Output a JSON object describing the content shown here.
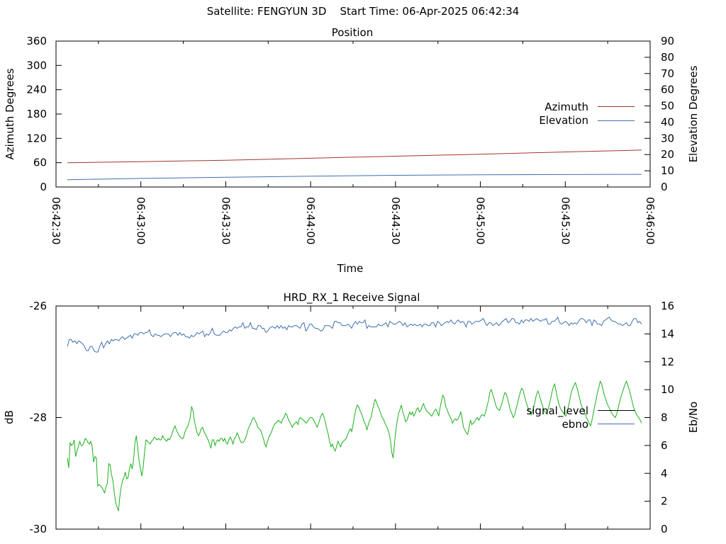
{
  "header": {
    "satellite": "Satellite: FENGYUN 3D",
    "start_time": "Start Time: 06-Apr-2025 06:42:34"
  },
  "chart_data": [
    {
      "type": "line",
      "title": "Position",
      "xlabel": "Time",
      "ylabel_left": "Azimuth Degrees",
      "ylabel_right": "Elevation Degrees",
      "x_ticks": [
        "06:42:30",
        "06:43:00",
        "06:43:30",
        "06:44:00",
        "06:44:30",
        "06:45:00",
        "06:45:30",
        "06:46:00"
      ],
      "xlim": [
        "06:42:30",
        "06:46:00"
      ],
      "ylim_left": [
        0,
        360
      ],
      "ylim_right": [
        0,
        90
      ],
      "y_ticks_left": [
        "0",
        "60",
        "120",
        "180",
        "240",
        "300",
        "360"
      ],
      "y_ticks_right": [
        "0",
        "10",
        "20",
        "30",
        "40",
        "50",
        "60",
        "70",
        "80",
        "90"
      ],
      "legend_position": "right",
      "series": [
        {
          "name": "Azimuth",
          "axis": "left",
          "color": "#a0362e",
          "x": [
            "06:42:34",
            "06:43:00",
            "06:43:30",
            "06:44:00",
            "06:44:30",
            "06:45:00",
            "06:45:30",
            "06:45:57"
          ],
          "values": [
            60,
            62.5,
            66,
            71,
            76,
            81,
            86.5,
            91
          ]
        },
        {
          "name": "Elevation",
          "axis": "right",
          "color": "#3f6fae",
          "x": [
            "06:42:34",
            "06:43:00",
            "06:43:30",
            "06:44:00",
            "06:44:30",
            "06:45:00",
            "06:45:30",
            "06:45:57"
          ],
          "values": [
            4.5,
            5.3,
            6.0,
            6.7,
            7.2,
            7.5,
            7.7,
            7.8
          ]
        }
      ]
    },
    {
      "type": "line",
      "title": "HRD_RX_1 Receive Signal",
      "ylabel_left": "dB",
      "ylabel_right": "Eb/No",
      "xlim": [
        "06:42:30",
        "06:46:00"
      ],
      "ylim_left": [
        -30,
        -26
      ],
      "ylim_right": [
        0,
        16
      ],
      "y_ticks_left": [
        "-30",
        "-28",
        "-26"
      ],
      "y_ticks_right": [
        "0",
        "2",
        "4",
        "6",
        "8",
        "10",
        "12",
        "14",
        "16"
      ],
      "legend_position": "right",
      "series": [
        {
          "name": "signal_level",
          "axis": "left",
          "color": "#000000",
          "values": []
        },
        {
          "name": "ebno",
          "axis": "right",
          "color": "#3f6fae",
          "start": "06:42:34",
          "step_seconds": 1,
          "values": [
            13.1,
            13.6,
            13.6,
            13.4,
            13.5,
            13.3,
            13.5,
            13.4,
            13.3,
            13.1,
            12.8,
            12.8,
            13.1,
            13.1,
            12.8,
            12.7,
            12.7,
            13.1,
            13.4,
            13.0,
            13.3,
            13.5,
            13.3,
            13.6,
            13.5,
            13.6,
            13.6,
            13.5,
            13.7,
            13.8,
            13.6,
            13.7,
            13.8,
            13.9,
            13.7,
            14.0,
            14.0,
            13.9,
            14.1,
            14.1,
            14.0,
            14.1,
            14.1,
            14.3,
            13.9,
            13.8,
            14.0,
            13.9,
            13.9,
            13.8,
            13.9,
            14.0,
            14.0,
            14.0,
            13.8,
            14.0,
            14.1,
            14.1,
            13.9,
            14.1,
            13.9,
            14.0,
            13.8,
            13.8,
            13.7,
            13.9,
            13.8,
            13.9,
            14.1,
            14.0,
            14.1,
            14.2,
            13.8,
            14.0,
            13.9,
            14.1,
            14.4,
            14.0,
            13.9,
            13.9,
            13.9,
            14.1,
            14.2,
            14.1,
            14.1,
            14.3,
            14.2,
            14.4,
            14.5,
            14.4,
            14.5,
            14.5,
            14.8,
            14.4,
            14.5,
            14.5,
            14.8,
            14.4,
            14.4,
            14.3,
            14.6,
            14.6,
            14.4,
            14.4,
            14.1,
            14.2,
            14.4,
            14.5,
            14.5,
            14.4,
            14.6,
            14.4,
            14.6,
            14.4,
            14.5,
            14.3,
            14.6,
            14.5,
            14.5,
            14.6,
            14.6,
            14.5,
            14.4,
            14.7,
            14.8,
            14.2,
            14.4,
            14.7,
            14.7,
            14.5,
            14.4,
            14.4,
            14.3,
            14.2,
            14.3,
            14.6,
            14.6,
            14.6,
            14.5,
            14.4,
            14.9,
            14.9,
            14.8,
            14.8,
            14.6,
            14.6,
            14.6,
            14.7,
            14.6,
            14.4,
            14.7,
            14.9,
            14.7,
            14.9,
            14.8,
            14.8,
            15.0,
            14.4,
            14.6,
            14.5,
            14.5,
            14.5,
            14.5,
            14.7,
            14.6,
            14.6,
            14.7,
            14.8,
            14.5,
            14.9,
            14.8,
            14.7,
            14.7,
            14.8,
            14.9,
            14.8,
            14.6,
            14.8,
            14.5,
            14.6,
            14.7,
            14.6,
            14.7,
            14.6,
            14.6,
            14.7,
            14.5,
            14.7,
            14.7,
            14.6,
            14.6,
            14.8,
            14.8,
            14.5,
            14.9,
            14.8,
            14.6,
            14.7,
            14.8,
            14.9,
            14.8,
            15.0,
            14.8,
            14.7,
            14.9,
            15.0,
            14.8,
            14.9,
            14.8,
            14.5,
            14.9,
            14.9,
            14.7,
            14.8,
            14.9,
            14.9,
            14.9,
            15.0,
            15.1,
            14.8,
            14.6,
            14.8,
            14.8,
            14.6,
            14.7,
            14.8,
            14.6,
            14.7,
            14.9,
            15.0,
            15.1,
            14.8,
            14.9,
            15.1,
            15.1,
            14.8,
            14.8,
            14.7,
            15.0,
            14.8,
            15.0,
            15.0,
            14.9,
            15.1,
            14.9,
            15.0,
            15.1,
            15.0,
            14.9,
            15.0,
            15.0,
            15.1,
            14.7,
            14.7,
            14.9,
            14.9,
            15.0,
            15.2,
            14.8,
            14.7,
            14.8,
            14.9,
            14.8,
            14.6,
            14.8,
            14.7,
            14.8,
            14.7,
            14.9,
            15.1,
            15.1,
            15.0,
            14.8,
            15.0,
            15.0,
            14.6,
            15.0,
            14.9,
            14.7,
            14.7,
            14.6,
            14.9,
            15.0,
            15.1,
            15.2,
            15.0,
            14.9,
            14.9,
            14.8,
            14.7,
            14.7,
            14.6,
            14.7,
            14.8,
            14.6,
            14.6,
            14.9,
            15.1,
            15.1,
            14.8,
            14.9,
            14.7
          ]
        },
        {
          "name": "",
          "axis": "right",
          "color": "#1cb01c",
          "start": "06:42:34",
          "step_seconds": 1,
          "values": [
            5.1,
            4.4,
            6.2,
            6.0,
            6.1,
            6.4,
            5.2,
            5.6,
            5.9,
            6.3,
            6.0,
            6.0,
            6.2,
            6.5,
            6.4,
            6.2,
            6.1,
            6.3,
            5.9,
            4.8,
            5.2,
            5.1,
            3.1,
            3.2,
            3.1,
            3.0,
            2.8,
            2.6,
            3.0,
            3.3,
            4.7,
            4.6,
            3.9,
            3.5,
            2.6,
            1.9,
            1.6,
            1.3,
            2.3,
            3.0,
            3.5,
            3.7,
            4.1,
            3.6,
            3.7,
            4.3,
            4.7,
            4.3,
            5.0,
            6.2,
            6.7,
            5.8,
            4.9,
            4.3,
            3.8,
            4.5,
            5.6,
            6.4,
            6.3,
            6.2,
            6.1,
            6.3,
            6.4,
            6.6,
            6.5,
            6.4,
            6.5,
            6.4,
            6.4,
            6.7,
            6.5,
            6.4,
            6.3,
            6.5,
            6.4,
            6.6,
            6.9,
            7.2,
            7.4,
            7.1,
            6.9,
            6.7,
            6.6,
            6.5,
            6.5,
            6.9,
            7.2,
            7.3,
            7.6,
            8.0,
            8.8,
            8.5,
            7.8,
            7.3,
            6.9,
            6.7,
            6.9,
            7.2,
            7.3,
            7.0,
            6.8,
            6.6,
            6.4,
            6.1,
            5.8,
            6.4,
            6.4,
            6.0,
            6.3,
            6.4,
            6.3,
            6.5,
            6.5,
            6.3,
            6.5,
            6.2,
            6.1,
            6.4,
            6.6,
            6.4,
            6.1,
            6.5,
            6.6,
            6.9,
            6.7,
            6.4,
            6.2,
            6.2,
            6.3,
            6.5,
            6.8,
            7.2,
            7.4,
            7.6,
            7.9,
            8.0,
            7.8,
            7.6,
            7.3,
            7.2,
            7.1,
            6.8,
            6.5,
            6.1,
            5.9,
            6.3,
            6.6,
            6.8,
            7.0,
            7.3,
            7.5,
            7.6,
            7.7,
            7.8,
            7.7,
            7.6,
            7.9,
            8.0,
            8.3,
            8.2,
            7.9,
            7.7,
            7.5,
            7.3,
            7.5,
            7.6,
            7.7,
            7.5,
            7.9,
            8.0,
            7.9,
            7.8,
            7.7,
            7.6,
            7.7,
            7.9,
            8.0,
            8.0,
            7.9,
            7.7,
            7.5,
            7.3,
            7.6,
            7.9,
            8.2,
            8.3,
            8.0,
            7.6,
            7.2,
            6.8,
            6.3,
            5.9,
            6.1,
            5.8,
            5.6,
            5.9,
            6.3,
            6.1,
            5.9,
            6.2,
            6.3,
            6.4,
            6.5,
            6.8,
            7.0,
            7.2,
            7.0,
            7.5,
            8.1,
            8.6,
            8.9,
            8.8,
            8.5,
            8.3,
            8.0,
            7.7,
            7.5,
            7.1,
            7.5,
            7.8,
            8.0,
            8.5,
            9.0,
            9.3,
            9.1,
            8.8,
            8.6,
            8.3,
            8.0,
            7.9,
            7.6,
            7.4,
            7.2,
            6.9,
            6.4,
            5.5,
            5.1,
            6.2,
            7.1,
            7.8,
            8.3,
            8.6,
            8.9,
            8.4,
            8.1,
            7.7,
            7.8,
            8.1,
            8.4,
            8.2,
            8.4,
            8.1,
            8.3,
            8.6,
            8.7,
            8.4,
            8.5,
            8.8,
            9.0,
            8.7,
            8.5,
            8.4,
            8.3,
            8.2,
            8.1,
            8.3,
            8.5,
            8.6,
            8.4,
            8.1,
            8.7,
            9.2,
            9.6,
            9.4,
            8.8,
            8.6,
            8.3,
            8.1,
            7.9,
            7.6,
            7.8,
            7.9,
            7.8,
            7.9,
            8.1,
            8.4,
            7.9,
            7.3,
            7.1,
            6.9,
            6.8,
            7.3,
            7.8,
            7.5,
            7.6,
            7.7,
            7.9,
            8.0,
            7.8,
            8.0,
            8.2,
            8.2,
            8.1,
            8.4,
            8.8,
            9.2,
            9.8,
            10.0,
            9.7,
            9.4,
            9.0,
            8.7,
            8.6,
            8.5,
            8.8,
            9.1,
            9.5,
            9.8,
            9.7,
            9.3,
            8.9,
            8.5,
            8.3,
            8.0,
            8.2,
            8.6,
            9.0,
            9.4,
            9.8,
            10.1,
            10.0,
            9.6,
            9.2,
            8.9,
            8.6,
            8.4,
            8.2,
            8.5,
            8.8,
            9.3,
            9.7,
            9.9,
            9.6,
            9.2,
            8.9,
            8.6,
            8.4,
            8.3,
            8.5,
            8.9,
            9.3,
            9.8,
            10.2,
            10.4,
            9.9,
            9.4,
            9.0,
            8.7,
            8.5,
            8.4,
            8.2,
            8.1,
            8.4,
            8.8,
            9.3,
            9.8,
            10.1,
            10.3,
            10.5,
            10.2,
            9.8,
            9.4,
            9.0,
            8.7,
            8.5,
            8.3,
            8.0,
            7.8,
            7.6,
            7.4,
            7.8,
            8.3,
            8.8,
            9.3,
            9.8,
            10.2,
            10.6,
            10.4,
            10.0,
            9.6,
            9.3,
            9.0,
            8.8,
            8.6,
            8.4,
            8.2,
            8.1,
            8.0,
            8.3,
            8.7,
            9.1,
            9.5,
            9.8,
            10.1,
            10.4,
            10.6,
            10.3,
            10.0,
            9.6,
            9.2,
            8.8,
            8.5,
            8.3,
            8.1,
            8.0,
            7.8,
            7.6
          ]
        }
      ]
    }
  ]
}
